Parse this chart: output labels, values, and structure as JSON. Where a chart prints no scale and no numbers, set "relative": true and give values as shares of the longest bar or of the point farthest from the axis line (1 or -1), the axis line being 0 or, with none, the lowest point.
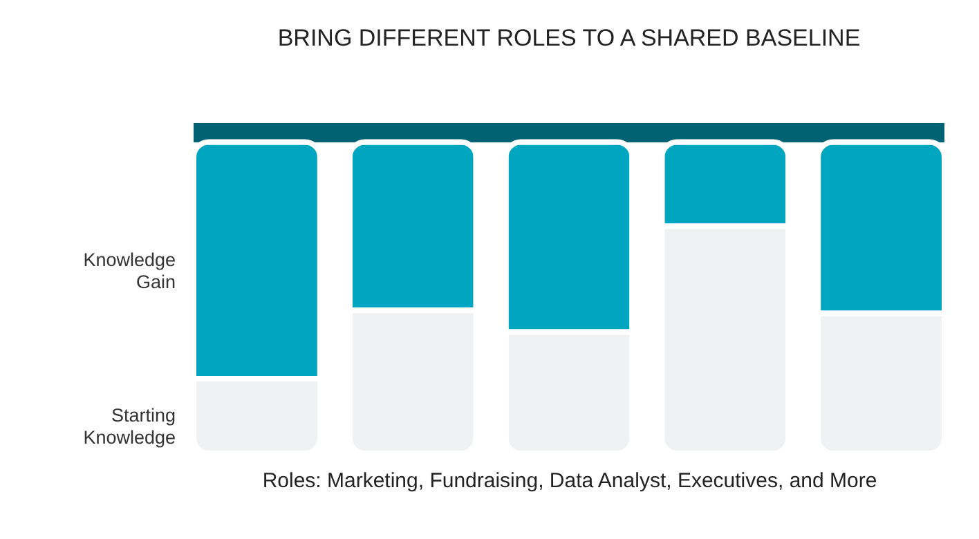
{
  "chart_data": {
    "type": "bar",
    "title": "BRING DIFFERENT ROLES TO A SHARED BASELINE",
    "xlabel": "Roles: Marketing, Fundraising, Data Analyst, Executives, and More",
    "categories": [
      null,
      null,
      null,
      null,
      null
    ],
    "stacked": true,
    "relative": true,
    "series": [
      {
        "name": "Starting Knowledge",
        "color": "#f0f1f3",
        "values": [
          0.24,
          0.46,
          0.39,
          0.73,
          0.45
        ]
      },
      {
        "name": "Knowledge Gain",
        "color": "#00a5c0",
        "values": [
          0.76,
          0.54,
          0.61,
          0.27,
          0.55
        ]
      }
    ],
    "ref_lines": [
      {
        "axis": "y",
        "value": 1.03,
        "color": "#006272"
      }
    ],
    "legend": false
  }
}
